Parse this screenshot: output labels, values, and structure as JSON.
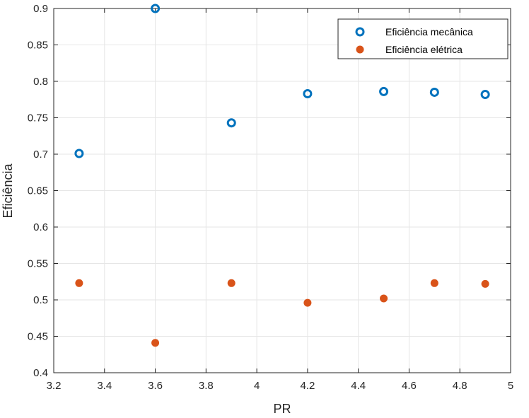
{
  "chart_data": {
    "type": "scatter",
    "title": "",
    "xlabel": "PR",
    "ylabel": "Eficiência",
    "xlim": [
      3.2,
      5
    ],
    "ylim": [
      0.4,
      0.9
    ],
    "xticks": [
      "3.2",
      "3.4",
      "3.6",
      "3.8",
      "4",
      "4.2",
      "4.4",
      "4.6",
      "4.8",
      "5"
    ],
    "yticks": [
      "0.4",
      "0.45",
      "0.5",
      "0.55",
      "0.6",
      "0.65",
      "0.7",
      "0.75",
      "0.8",
      "0.85",
      "0.9"
    ],
    "grid": true,
    "legend_position": "top-right",
    "series": [
      {
        "name": "Eficiência mecânica",
        "marker": "open-circle",
        "color": "#0072BD",
        "points": [
          [
            3.3,
            0.701
          ],
          [
            3.6,
            0.9
          ],
          [
            3.9,
            0.743
          ],
          [
            4.2,
            0.783
          ],
          [
            4.5,
            0.786
          ],
          [
            4.7,
            0.785
          ],
          [
            4.9,
            0.782
          ]
        ]
      },
      {
        "name": "Eficiência elétrica",
        "marker": "filled-circle",
        "color": "#D95319",
        "points": [
          [
            3.3,
            0.523
          ],
          [
            3.6,
            0.441
          ],
          [
            3.9,
            0.523
          ],
          [
            4.2,
            0.496
          ],
          [
            4.5,
            0.502
          ],
          [
            4.7,
            0.523
          ],
          [
            4.9,
            0.522
          ]
        ]
      }
    ]
  }
}
